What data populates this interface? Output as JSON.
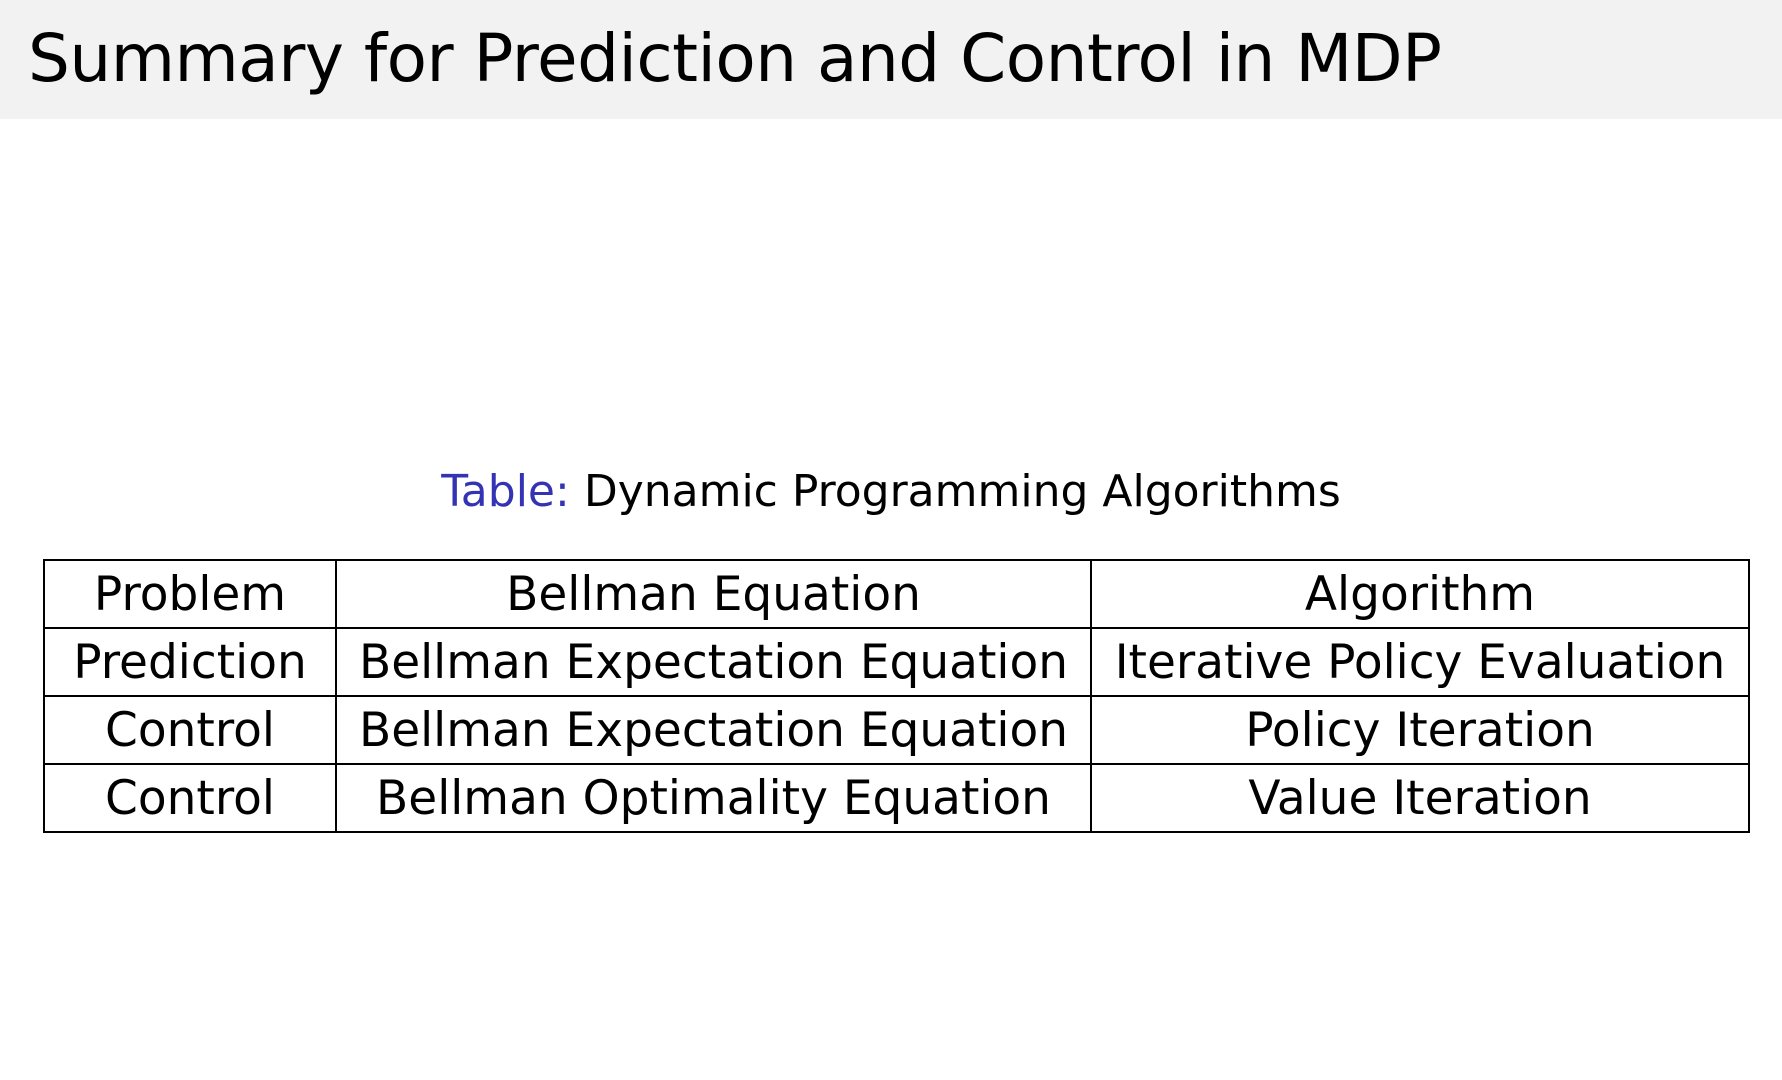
{
  "slide": {
    "title": "Summary for Prediction and Control in MDP",
    "caption_label": "Table:",
    "caption_text": "Dynamic Programming Algorithms",
    "caption_label_color": "#3333b3",
    "header_background": "#f2f2f2"
  },
  "table": {
    "headers": [
      "Problem",
      "Bellman Equation",
      "Algorithm"
    ],
    "rows": [
      [
        "Prediction",
        "Bellman Expectation Equation",
        "Iterative Policy Evaluation"
      ],
      [
        "Control",
        "Bellman Expectation Equation",
        "Policy Iteration"
      ],
      [
        "Control",
        "Bellman Optimality Equation",
        "Value Iteration"
      ]
    ]
  }
}
